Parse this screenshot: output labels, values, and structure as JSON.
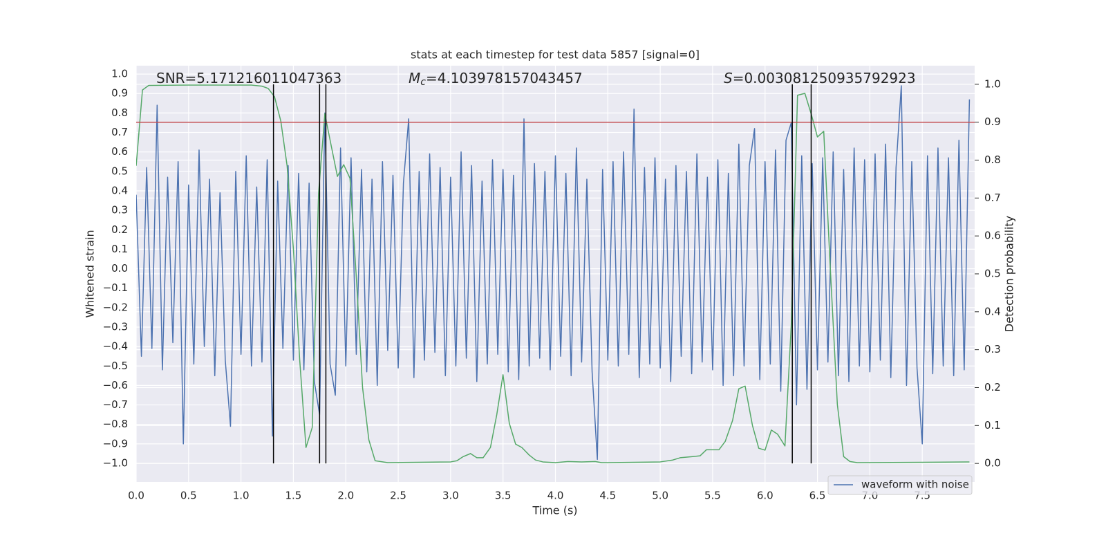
{
  "chart_data": {
    "type": "line",
    "title": "stats at each timestep for test data 5857 [signal=0]",
    "x_label": "Time (s)",
    "y_label": "Whitened strain",
    "y2_label": "Detection probability",
    "xlim": [
      0,
      8
    ],
    "ylim": [
      -1.096,
      1.043
    ],
    "y2lim": [
      -0.049,
      1.049
    ],
    "xticks": [
      {
        "value": 0,
        "label": "0.0"
      },
      {
        "value": 0.5,
        "label": "0.5"
      },
      {
        "value": 1,
        "label": "1.0"
      },
      {
        "value": 1.5,
        "label": "1.5"
      },
      {
        "value": 2,
        "label": "2.0"
      },
      {
        "value": 2.5,
        "label": "2.5"
      },
      {
        "value": 3,
        "label": "3.0"
      },
      {
        "value": 3.5,
        "label": "3.5"
      },
      {
        "value": 4,
        "label": "4.0"
      },
      {
        "value": 4.5,
        "label": "4.5"
      },
      {
        "value": 5,
        "label": "5.0"
      },
      {
        "value": 5.5,
        "label": "5.5"
      },
      {
        "value": 6,
        "label": "6.0"
      },
      {
        "value": 6.5,
        "label": "6.5"
      },
      {
        "value": 7,
        "label": "7.0"
      },
      {
        "value": 7.5,
        "label": "7.5"
      }
    ],
    "yticks": [
      {
        "value": -1,
        "label": "−1.0"
      },
      {
        "value": -0.9,
        "label": "−0.9"
      },
      {
        "value": -0.8,
        "label": "−0.8"
      },
      {
        "value": -0.7,
        "label": "−0.7"
      },
      {
        "value": -0.6,
        "label": "−0.6"
      },
      {
        "value": -0.5,
        "label": "−0.5"
      },
      {
        "value": -0.4,
        "label": "−0.4"
      },
      {
        "value": -0.3,
        "label": "−0.3"
      },
      {
        "value": -0.2,
        "label": "−0.2"
      },
      {
        "value": -0.1,
        "label": "−0.1"
      },
      {
        "value": 0,
        "label": "0.0"
      },
      {
        "value": 0.1,
        "label": "0.1"
      },
      {
        "value": 0.2,
        "label": "0.2"
      },
      {
        "value": 0.3,
        "label": "0.3"
      },
      {
        "value": 0.4,
        "label": "0.4"
      },
      {
        "value": 0.5,
        "label": "0.5"
      },
      {
        "value": 0.6,
        "label": "0.6"
      },
      {
        "value": 0.7,
        "label": "0.7"
      },
      {
        "value": 0.8,
        "label": "0.8"
      },
      {
        "value": 0.9,
        "label": "0.9"
      },
      {
        "value": 1,
        "label": "1.0"
      }
    ],
    "y2ticks": [
      {
        "value": 0,
        "label": "0.0"
      },
      {
        "value": 0.1,
        "label": "0.1"
      },
      {
        "value": 0.2,
        "label": "0.2"
      },
      {
        "value": 0.3,
        "label": "0.3"
      },
      {
        "value": 0.4,
        "label": "0.4"
      },
      {
        "value": 0.5,
        "label": "0.5"
      },
      {
        "value": 0.6,
        "label": "0.6"
      },
      {
        "value": 0.7,
        "label": "0.7"
      },
      {
        "value": 0.8,
        "label": "0.8"
      },
      {
        "value": 0.9,
        "label": "0.9"
      },
      {
        "value": 1,
        "label": "1.0"
      }
    ],
    "grid": true,
    "legend": "lower right",
    "annotations": [
      {
        "text": "SNR=5.171216011047363"
      },
      {
        "symbol": "M",
        "sub": "c",
        "text": "=4.103978157043457"
      },
      {
        "symbol": "S",
        "text": "=0.003081250935792923"
      }
    ],
    "threshold": {
      "value": 0.9,
      "axis": "y2",
      "color": "#c44e52"
    },
    "vlines": {
      "x": [
        1.31,
        1.75,
        1.81,
        6.26,
        6.44
      ],
      "ymin": 0,
      "ymax": 1,
      "axis": "y2",
      "color": "#000000"
    },
    "series": [
      {
        "name": "waveform with noise",
        "color": "#4c72b0",
        "x": [
          0,
          0.05,
          0.1,
          0.15,
          0.2,
          0.25,
          0.3,
          0.35,
          0.4,
          0.45,
          0.5,
          0.55,
          0.6,
          0.65,
          0.7,
          0.75,
          0.8,
          0.85,
          0.9,
          0.95,
          1,
          1.05,
          1.1,
          1.15,
          1.2,
          1.25,
          1.3,
          1.35,
          1.4,
          1.45,
          1.5,
          1.55,
          1.6,
          1.65,
          1.7,
          1.75,
          1.8,
          1.85,
          1.9,
          1.95,
          2,
          2.05,
          2.1,
          2.15,
          2.2,
          2.25,
          2.3,
          2.35,
          2.4,
          2.45,
          2.5,
          2.55,
          2.6,
          2.65,
          2.7,
          2.75,
          2.8,
          2.85,
          2.9,
          2.95,
          3,
          3.05,
          3.1,
          3.15,
          3.2,
          3.25,
          3.3,
          3.35,
          3.4,
          3.45,
          3.5,
          3.55,
          3.6,
          3.65,
          3.7,
          3.75,
          3.8,
          3.85,
          3.9,
          3.95,
          4,
          4.05,
          4.1,
          4.15,
          4.2,
          4.25,
          4.3,
          4.35,
          4.4,
          4.45,
          4.5,
          4.55,
          4.6,
          4.65,
          4.7,
          4.75,
          4.8,
          4.85,
          4.9,
          4.95,
          5,
          5.05,
          5.1,
          5.15,
          5.2,
          5.25,
          5.3,
          5.35,
          5.4,
          5.45,
          5.5,
          5.55,
          5.6,
          5.65,
          5.7,
          5.75,
          5.8,
          5.85,
          5.9,
          5.95,
          6,
          6.05,
          6.1,
          6.15,
          6.2,
          6.25,
          6.3,
          6.35,
          6.4,
          6.45,
          6.5,
          6.55,
          6.6,
          6.65,
          6.7,
          6.75,
          6.8,
          6.85,
          6.9,
          6.95,
          7,
          7.05,
          7.1,
          7.15,
          7.2,
          7.25,
          7.3,
          7.35,
          7.4,
          7.45,
          7.5,
          7.55,
          7.6,
          7.65,
          7.7,
          7.75,
          7.8,
          7.85,
          7.9,
          7.95
        ],
        "values": [
          0.38,
          -0.45,
          0.52,
          -0.41,
          0.84,
          -0.52,
          0.47,
          -0.38,
          0.55,
          -0.9,
          0.43,
          -0.49,
          0.61,
          -0.4,
          0.46,
          -0.55,
          0.39,
          -0.47,
          -0.81,
          0.5,
          -0.44,
          0.58,
          -0.5,
          0.42,
          -0.48,
          0.56,
          -0.86,
          0.45,
          -0.41,
          0.53,
          -0.47,
          0.49,
          -0.52,
          0.44,
          -0.58,
          -0.75,
          0.8,
          -0.49,
          -0.65,
          0.62,
          -0.5,
          0.57,
          -0.44,
          0.51,
          -0.53,
          0.46,
          -0.6,
          0.55,
          -0.42,
          0.48,
          -0.51,
          0.44,
          0.77,
          -0.56,
          0.5,
          -0.47,
          0.59,
          -0.43,
          0.52,
          -0.55,
          0.47,
          -0.5,
          0.6,
          -0.46,
          0.53,
          -0.58,
          0.45,
          -0.49,
          0.56,
          -0.44,
          0.51,
          -0.53,
          0.48,
          -0.57,
          0.77,
          -0.5,
          0.54,
          -0.46,
          0.5,
          -0.52,
          0.58,
          -0.45,
          0.49,
          -0.55,
          0.62,
          -0.48,
          0.46,
          -0.53,
          -0.98,
          0.51,
          -0.47,
          0.55,
          -0.5,
          0.6,
          -0.44,
          0.82,
          -0.56,
          0.52,
          -0.49,
          0.57,
          -0.51,
          0.46,
          -0.58,
          0.53,
          -0.45,
          0.5,
          -0.54,
          0.59,
          -0.48,
          0.47,
          -0.52,
          0.56,
          -0.6,
          0.49,
          -0.55,
          0.64,
          -0.5,
          0.53,
          0.72,
          -0.57,
          0.55,
          -0.49,
          0.61,
          -0.63,
          0.66,
          0.75,
          -0.7,
          0.58,
          -0.62,
          0.54,
          -0.52,
          0.57,
          -0.48,
          0.6,
          -0.55,
          0.51,
          -0.58,
          0.62,
          -0.5,
          0.56,
          -0.53,
          0.59,
          -0.47,
          0.64,
          -0.56,
          0.52,
          0.94,
          -0.6,
          0.55,
          -0.51,
          -0.9,
          0.58,
          -0.54,
          0.62,
          -0.5,
          0.57,
          -0.55,
          0.66,
          -0.52,
          0.87
        ]
      },
      {
        "color": "#55a868",
        "axis": "y2",
        "x": [
          0,
          0.06,
          0.12,
          0.5,
          1,
          1.1,
          1.2,
          1.26,
          1.32,
          1.38,
          1.44,
          1.5,
          1.56,
          1.62,
          1.68,
          1.74,
          1.8,
          1.86,
          1.92,
          1.98,
          2.04,
          2.1,
          2.16,
          2.22,
          2.28,
          2.4,
          3,
          3.06,
          3.12,
          3.19,
          3.25,
          3.31,
          3.38,
          3.44,
          3.5,
          3.56,
          3.62,
          3.68,
          3.75,
          3.81,
          3.88,
          4,
          4.12,
          4.25,
          4.38,
          4.44,
          4.5,
          5,
          5.12,
          5.19,
          5.31,
          5.38,
          5.44,
          5.5,
          5.56,
          5.62,
          5.69,
          5.75,
          5.81,
          5.88,
          5.94,
          6,
          6.06,
          6.12,
          6.19,
          6.25,
          6.31,
          6.38,
          6.44,
          6.5,
          6.56,
          6.62,
          6.69,
          6.75,
          6.81,
          6.88,
          7.5,
          7.95
        ],
        "values": [
          0.785,
          0.985,
          0.997,
          0.998,
          0.998,
          0.998,
          0.995,
          0.989,
          0.967,
          0.903,
          0.785,
          0.566,
          0.274,
          0.042,
          0.095,
          0.712,
          0.922,
          0.839,
          0.757,
          0.788,
          0.752,
          0.493,
          0.2,
          0.062,
          0.007,
          0.002,
          0.004,
          0.007,
          0.018,
          0.026,
          0.015,
          0.015,
          0.042,
          0.128,
          0.234,
          0.106,
          0.051,
          0.042,
          0.022,
          0.009,
          0.004,
          0.002,
          0.005,
          0.004,
          0.005,
          0.002,
          0.002,
          0.004,
          0.009,
          0.015,
          0.018,
          0.02,
          0.036,
          0.036,
          0.036,
          0.058,
          0.113,
          0.197,
          0.204,
          0.1,
          0.04,
          0.035,
          0.088,
          0.077,
          0.046,
          0.365,
          0.971,
          0.976,
          0.922,
          0.861,
          0.876,
          0.529,
          0.155,
          0.018,
          0.005,
          0.002,
          0.003,
          0.004
        ]
      }
    ]
  }
}
